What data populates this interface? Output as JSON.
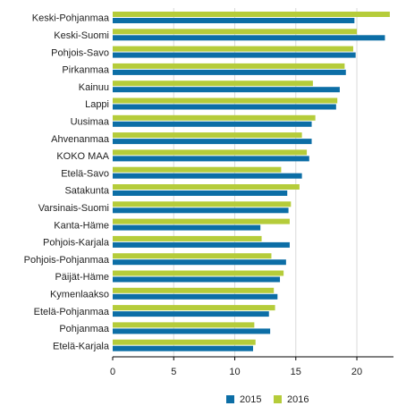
{
  "chart_data": {
    "type": "bar",
    "orientation": "horizontal",
    "categories": [
      "Keski-Pohjanmaa",
      "Keski-Suomi",
      "Pohjois-Savo",
      "Pirkanmaa",
      "Kainuu",
      "Lappi",
      "Uusimaa",
      "Ahvenanmaa",
      "KOKO MAA",
      "Etelä-Savo",
      "Satakunta",
      "Varsinais-Suomi",
      "Kanta-Häme",
      "Pohjois-Karjala",
      "Pohjois-Pohjanmaa",
      "Päijät-Häme",
      "Kymenlaakso",
      "Etelä-Pohjanmaa",
      "Pohjanmaa",
      "Etelä-Karjala"
    ],
    "series": [
      {
        "name": "2015",
        "color": "#0c6ea6",
        "values": [
          19.8,
          22.3,
          19.9,
          19.1,
          18.6,
          18.3,
          16.3,
          16.3,
          16.1,
          15.5,
          14.3,
          14.4,
          12.1,
          14.5,
          14.2,
          13.7,
          13.5,
          12.8,
          12.9,
          11.5
        ]
      },
      {
        "name": "2016",
        "color": "#b5cc3a",
        "values": [
          22.7,
          20.0,
          19.7,
          19.0,
          16.4,
          18.4,
          16.6,
          15.5,
          15.9,
          13.8,
          15.3,
          14.6,
          14.5,
          12.2,
          13.0,
          14.0,
          13.2,
          13.3,
          11.6,
          11.7
        ]
      }
    ],
    "xaxis": {
      "ticks": [
        0,
        5,
        10,
        15,
        20
      ],
      "range": [
        0,
        23
      ]
    },
    "title": "",
    "xlabel": "",
    "ylabel": "",
    "grid": "vertical",
    "legend_position": "bottom"
  }
}
